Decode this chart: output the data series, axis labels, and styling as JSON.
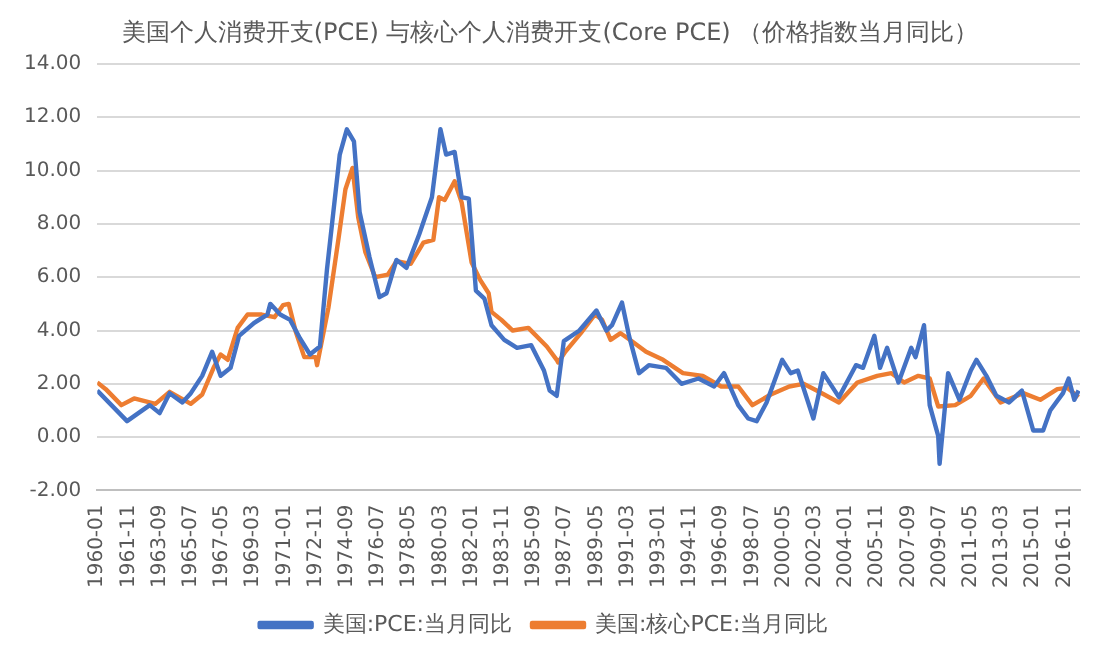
{
  "chart_data": {
    "type": "line",
    "title": "美国个人消费开支(PCE)  与核心个人消费开支(Core PCE)    （价格指数当月同比）",
    "xlim": [
      "1960-01",
      "2017-10"
    ],
    "xticks": [
      "1960-01",
      "1961-11",
      "1963-09",
      "1965-07",
      "1967-05",
      "1969-03",
      "1971-01",
      "1972-11",
      "1974-09",
      "1976-07",
      "1978-05",
      "1980-03",
      "1982-01",
      "1983-11",
      "1985-09",
      "1987-07",
      "1989-05",
      "1991-03",
      "1993-01",
      "1994-11",
      "1996-09",
      "1998-07",
      "2000-05",
      "2002-03",
      "2004-01",
      "2005-11",
      "2007-09",
      "2009-07",
      "2011-05",
      "2013-03",
      "2015-01",
      "2016-11"
    ],
    "ylim": [
      -2,
      14
    ],
    "yticks": [
      {
        "value": -2,
        "label": "-2.00"
      },
      {
        "value": 0,
        "label": "0.00"
      },
      {
        "value": 2,
        "label": "2.00"
      },
      {
        "value": 4,
        "label": "4.00"
      },
      {
        "value": 6,
        "label": "6.00"
      },
      {
        "value": 8,
        "label": "8.00"
      },
      {
        "value": 10,
        "label": "10.00"
      },
      {
        "value": 12,
        "label": "12.00"
      },
      {
        "value": 14,
        "label": "14.00"
      }
    ],
    "grid": "y",
    "legend": "bottom",
    "marker": "none",
    "line_style": "solid",
    "series": [
      {
        "name": "美国:PCE:当月同比",
        "color": "#4472c4",
        "x": [
          "1960-01",
          "1961-10",
          "1963-02",
          "1963-09",
          "1964-04",
          "1965-01",
          "1965-07",
          "1966-03",
          "1966-10",
          "1967-04",
          "1967-11",
          "1968-05",
          "1969-04",
          "1970-01",
          "1970-03",
          "1970-10",
          "1971-05",
          "1971-12",
          "1972-07",
          "1973-02",
          "1973-07",
          "1974-04",
          "1974-09",
          "1975-02",
          "1975-06",
          "1976-01",
          "1976-08",
          "1977-01",
          "1977-08",
          "1978-03",
          "1978-12",
          "1979-09",
          "1980-03",
          "1980-07",
          "1981-01",
          "1981-06",
          "1981-11",
          "1982-04",
          "1982-10",
          "1983-03",
          "1983-12",
          "1984-09",
          "1985-07",
          "1986-04",
          "1986-08",
          "1987-01",
          "1987-06",
          "1988-05",
          "1989-05",
          "1989-12",
          "1990-04",
          "1990-11",
          "1991-04",
          "1991-11",
          "1992-06",
          "1993-06",
          "1994-05",
          "1995-05",
          "1996-04",
          "1996-11",
          "1997-09",
          "1998-04",
          "1998-10",
          "1999-05",
          "2000-04",
          "2000-10",
          "2001-03",
          "2002-02",
          "2002-09",
          "2003-08",
          "2004-08",
          "2005-01",
          "2005-09",
          "2006-01",
          "2006-06",
          "2007-02",
          "2007-11",
          "2008-02",
          "2008-08",
          "2008-12",
          "2009-06",
          "2009-07",
          "2010-01",
          "2010-09",
          "2011-05",
          "2011-09",
          "2012-04",
          "2012-11",
          "2013-08",
          "2014-05",
          "2015-01",
          "2015-08",
          "2016-01",
          "2016-10",
          "2017-02",
          "2017-06",
          "2017-09"
        ],
        "values": [
          1.75,
          0.6,
          1.2,
          0.9,
          1.65,
          1.3,
          1.65,
          2.3,
          3.2,
          2.3,
          2.6,
          3.8,
          4.3,
          4.6,
          5.0,
          4.6,
          4.4,
          3.7,
          3.1,
          3.4,
          6.3,
          10.6,
          11.55,
          11.1,
          8.45,
          6.75,
          5.25,
          5.4,
          6.65,
          6.35,
          7.6,
          9.0,
          11.55,
          10.6,
          10.7,
          9.0,
          8.95,
          5.5,
          5.2,
          4.2,
          3.65,
          3.35,
          3.45,
          2.5,
          1.75,
          1.55,
          3.6,
          4.0,
          4.75,
          4.0,
          4.2,
          5.05,
          3.8,
          2.4,
          2.7,
          2.6,
          2.0,
          2.2,
          1.9,
          2.4,
          1.2,
          0.7,
          0.6,
          1.3,
          2.9,
          2.4,
          2.5,
          0.7,
          2.4,
          1.5,
          2.7,
          2.6,
          3.8,
          2.6,
          3.35,
          2.05,
          3.35,
          3.0,
          4.2,
          1.2,
          0.05,
          -1.0,
          2.4,
          1.4,
          2.5,
          2.9,
          2.3,
          1.55,
          1.3,
          1.75,
          0.25,
          0.25,
          1.0,
          1.65,
          2.2,
          1.4,
          1.75
        ]
      },
      {
        "name": "美国:核心PCE:当月同比",
        "color": "#ed7d31",
        "x": [
          "1960-01",
          "1960-07",
          "1961-06",
          "1962-03",
          "1963-06",
          "1964-04",
          "1965-07",
          "1966-03",
          "1966-11",
          "1967-04",
          "1967-09",
          "1968-04",
          "1968-11",
          "1969-09",
          "1970-06",
          "1970-12",
          "1971-04",
          "1971-09",
          "1972-03",
          "1972-11",
          "1972-12",
          "1973-08",
          "1974-03",
          "1974-08",
          "1975-01",
          "1975-05",
          "1975-10",
          "1976-05",
          "1977-02",
          "1977-08",
          "1978-06",
          "1979-03",
          "1979-10",
          "1980-02",
          "1980-06",
          "1981-01",
          "1981-06",
          "1982-01",
          "1982-07",
          "1983-01",
          "1983-03",
          "1983-10",
          "1984-06",
          "1985-05",
          "1986-06",
          "1987-01",
          "1987-02",
          "1987-07",
          "1988-06",
          "1989-04",
          "1989-09",
          "1990-03",
          "1990-10",
          "1991-06",
          "1992-04",
          "1993-04",
          "1994-06",
          "1995-08",
          "1996-09",
          "1997-09",
          "1998-07",
          "1999-08",
          "2000-09",
          "2001-07",
          "2002-06",
          "2003-08",
          "2004-09",
          "2005-11",
          "2006-09",
          "2007-06",
          "2008-04",
          "2008-12",
          "2009-06",
          "2010-06",
          "2011-05",
          "2012-02",
          "2013-02",
          "2014-06",
          "2015-06",
          "2016-06",
          "2017-01",
          "2017-09"
        ],
        "values": [
          2.05,
          1.8,
          1.2,
          1.45,
          1.25,
          1.7,
          1.25,
          1.6,
          2.6,
          3.1,
          2.9,
          4.1,
          4.6,
          4.6,
          4.5,
          4.95,
          5.0,
          3.95,
          3.0,
          3.0,
          2.7,
          4.85,
          7.4,
          9.3,
          10.1,
          8.25,
          6.95,
          6.0,
          6.1,
          6.6,
          6.5,
          7.3,
          7.4,
          9.0,
          8.9,
          9.6,
          8.8,
          6.55,
          5.9,
          5.4,
          4.7,
          4.4,
          4.0,
          4.1,
          3.4,
          2.9,
          2.8,
          3.2,
          3.9,
          4.6,
          4.4,
          3.65,
          3.9,
          3.6,
          3.2,
          2.9,
          2.4,
          2.3,
          1.9,
          1.9,
          1.2,
          1.6,
          1.9,
          2.0,
          1.7,
          1.3,
          2.05,
          2.3,
          2.4,
          2.05,
          2.3,
          2.2,
          1.15,
          1.2,
          1.55,
          2.2,
          1.3,
          1.65,
          1.4,
          1.8,
          1.85,
          1.5
        ]
      }
    ]
  }
}
